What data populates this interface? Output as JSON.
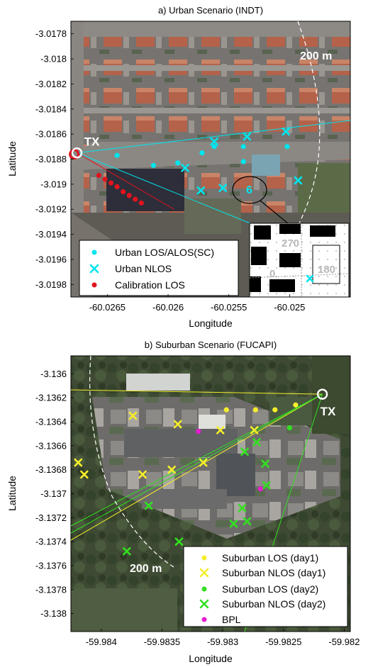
{
  "chart_data": [
    {
      "type": "scatter",
      "title": "a) Urban Scenario (INDT)",
      "xlabel": "Longitude",
      "ylabel": "Latitude",
      "xticks": [
        "-60.0265",
        "-60.026",
        "-60.0255",
        "-60.025"
      ],
      "xtick_values": [
        -60.0265,
        -60.026,
        -60.0255,
        -60.025
      ],
      "yticks": [
        "-3.0178",
        "-3.018",
        "-3.0182",
        "-3.0184",
        "-3.0186",
        "-3.0188",
        "-3.019",
        "-3.0192",
        "-3.0194",
        "-3.0196",
        "-3.0198"
      ],
      "ytick_values": [
        -3.0178,
        -3.018,
        -3.0182,
        -3.0184,
        -3.0186,
        -3.0188,
        -3.019,
        -3.0192,
        -3.0194,
        -3.0196,
        -3.0198
      ],
      "xlim": [
        -60.0268,
        -60.0245
      ],
      "ylim": [
        -3.0199,
        -3.0177
      ],
      "grid": false,
      "background": "satellite-map",
      "legend_position": "bottom-left",
      "tx": {
        "label": "TX",
        "x": -60.02675,
        "y": -3.01875
      },
      "range_label": "200 m",
      "series": [
        {
          "name": "Urban LOS/ALOS(SC)",
          "marker": "dot",
          "color": "#00e5ee",
          "x": [
            -60.02642,
            -60.02612,
            -60.02592,
            -60.02572,
            -60.02562,
            -60.02538,
            -60.02538,
            -60.02502
          ],
          "y": [
            -3.01877,
            -3.01885,
            -3.01883,
            -3.01875,
            -3.0187,
            -3.0187,
            -3.01882,
            -3.0187
          ]
        },
        {
          "name": "Urban NLOS",
          "marker": "x",
          "color": "#00e5ee",
          "x": [
            -60.02562,
            -60.02535,
            -60.02503,
            -60.02586,
            -60.02573,
            -60.02555,
            -60.02493
          ],
          "y": [
            -3.01866,
            -3.01862,
            -3.01858,
            -3.01887,
            -3.01905,
            -3.01903,
            -3.01897
          ]
        },
        {
          "name": "Calibration LOS",
          "marker": "dot",
          "color": "#e0141e",
          "x": [
            -60.02657,
            -60.02652,
            -60.02647,
            -60.02642,
            -60.02637,
            -60.02632,
            -60.02627,
            -60.02622
          ],
          "y": [
            -3.01893,
            -3.01896,
            -3.01899,
            -3.01902,
            -3.01906,
            -3.01909,
            -3.01912,
            -3.01915
          ]
        }
      ],
      "inset_labels": [
        "6",
        "270",
        "0",
        "180"
      ]
    },
    {
      "type": "scatter",
      "title": "b) Suburban Scenario (FUCAPI)",
      "xlabel": "Longitude",
      "ylabel": "Latitude",
      "xticks": [
        "-59.984",
        "-59.9835",
        "-59.983",
        "-59.9825",
        "-59.982"
      ],
      "xtick_values": [
        -59.984,
        -59.9835,
        -59.983,
        -59.9825,
        -59.982
      ],
      "yticks": [
        "-3.136",
        "-3.1362",
        "-3.1364",
        "-3.1366",
        "-3.1368",
        "-3.137",
        "-3.1372",
        "-3.1374",
        "-3.1376",
        "-3.1378",
        "-3.138"
      ],
      "ytick_values": [
        -3.136,
        -3.1362,
        -3.1364,
        -3.1366,
        -3.1368,
        -3.137,
        -3.1372,
        -3.1374,
        -3.1376,
        -3.1378,
        -3.138
      ],
      "xlim": [
        -59.98425,
        -59.98195
      ],
      "ylim": [
        -3.13815,
        -3.13585
      ],
      "grid": false,
      "background": "satellite-map",
      "legend_position": "bottom-right",
      "tx": {
        "label": "TX",
        "x": -59.98218,
        "y": -3.13617
      },
      "range_label": "200 m",
      "series": [
        {
          "name": "Suburban LOS (day1)",
          "marker": "dot",
          "color": "#f5ee2a",
          "x": [
            -59.98297,
            -59.98273,
            -59.98257,
            -59.9824
          ],
          "y": [
            -3.1363,
            -3.1363,
            -3.1363,
            -3.13626
          ]
        },
        {
          "name": "Suburban NLOS (day1)",
          "marker": "x",
          "color": "#f5ee2a",
          "x": [
            -59.98374,
            -59.98337,
            -59.98302,
            -59.98274,
            -59.98419,
            -59.98414,
            -59.98366,
            -59.98342,
            -59.98316
          ],
          "y": [
            -3.13635,
            -3.13642,
            -3.13647,
            -3.13647,
            -3.13674,
            -3.13684,
            -3.13684,
            -3.1368,
            -3.13674
          ]
        },
        {
          "name": "Suburban LOS (day2)",
          "marker": "dot",
          "color": "#32e020",
          "x": [
            -59.98245
          ],
          "y": [
            -3.13645
          ]
        },
        {
          "name": "Suburban NLOS (day2)",
          "marker": "x",
          "color": "#32e020",
          "x": [
            -59.98272,
            -59.98282,
            -59.98265,
            -59.98264,
            -59.98284,
            -59.98361,
            -59.98291,
            -59.9828,
            -59.98379,
            -59.98336
          ],
          "y": [
            -3.13657,
            -3.13665,
            -3.13675,
            -3.13693,
            -3.13712,
            -3.1371,
            -3.13725,
            -3.13723,
            -3.13748,
            -3.1374
          ]
        },
        {
          "name": "BPL",
          "marker": "dot",
          "color": "#e81cd0",
          "x": [
            -59.9832,
            -59.98269
          ],
          "y": [
            -3.13648,
            -3.13696
          ]
        }
      ]
    }
  ],
  "colors": {
    "cyan": "#00e5ee",
    "red": "#e0141e",
    "yellow": "#f5ee2a",
    "green": "#32e020",
    "magenta": "#e81cd0"
  }
}
